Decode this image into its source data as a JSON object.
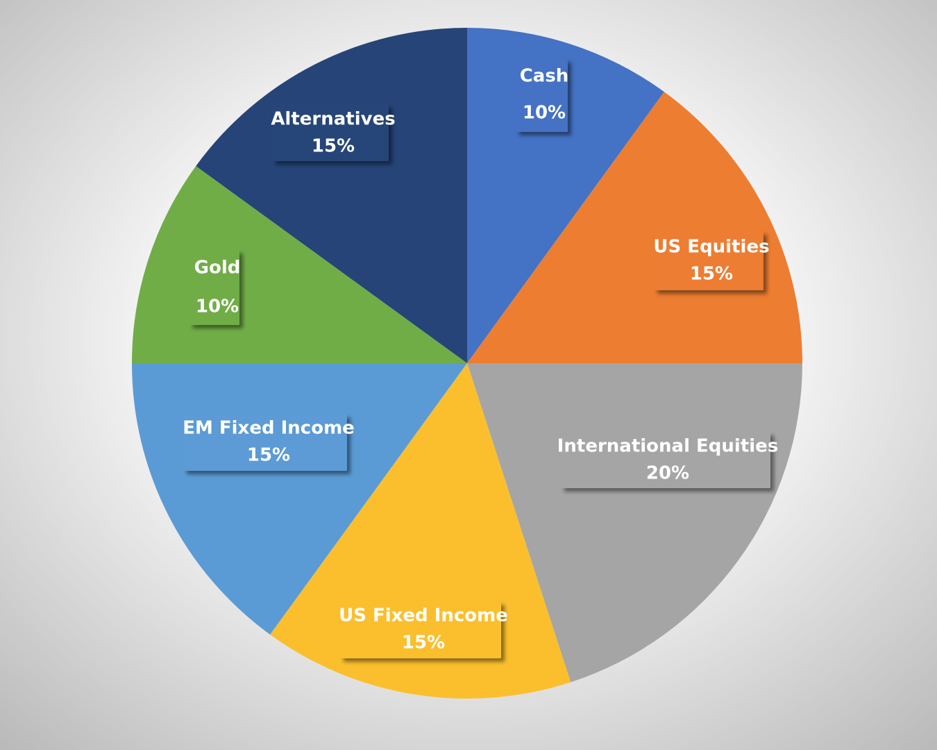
{
  "chart_data": {
    "type": "pie",
    "categories": [
      "Cash",
      "US Equities",
      "International Equities",
      "US Fixed Income",
      "EM Fixed Income",
      "Gold",
      "Alternatives"
    ],
    "values": [
      10,
      15,
      20,
      15,
      15,
      10,
      15
    ],
    "value_labels": [
      "10%",
      "15%",
      "20%",
      "15%",
      "15%",
      "10%",
      "15%"
    ],
    "colors": [
      "#4472c4",
      "#ed7d31",
      "#a5a5a5",
      "#fbbf2d",
      "#5b9bd5",
      "#70ad47",
      "#264478"
    ]
  }
}
